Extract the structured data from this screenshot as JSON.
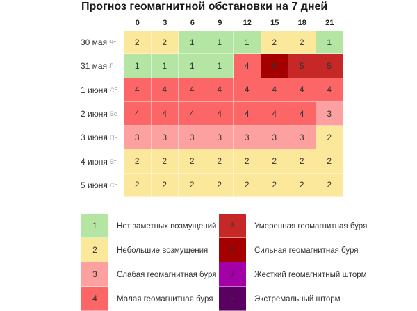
{
  "chart_data": {
    "type": "heatmap",
    "title": "Прогноз геомагнитной обстановки на 7 дней",
    "x": [
      "0",
      "3",
      "6",
      "9",
      "12",
      "15",
      "18",
      "21"
    ],
    "rows": [
      {
        "date": "30 мая",
        "dow": "Чт",
        "values": [
          2,
          2,
          1,
          1,
          1,
          2,
          2,
          1
        ]
      },
      {
        "date": "31 мая",
        "dow": "Пт",
        "values": [
          1,
          1,
          1,
          1,
          4,
          6,
          5,
          5
        ]
      },
      {
        "date": "1 июня",
        "dow": "Сб",
        "values": [
          4,
          4,
          4,
          4,
          4,
          4,
          4,
          4
        ]
      },
      {
        "date": "2 июня",
        "dow": "Вс",
        "values": [
          4,
          4,
          4,
          4,
          4,
          4,
          4,
          3
        ]
      },
      {
        "date": "3 июня",
        "dow": "Пн",
        "values": [
          3,
          3,
          3,
          3,
          3,
          3,
          3,
          2
        ]
      },
      {
        "date": "4 июня",
        "dow": "Вт",
        "values": [
          2,
          2,
          2,
          2,
          2,
          2,
          2,
          2
        ]
      },
      {
        "date": "5 июня",
        "dow": "Ср",
        "values": [
          2,
          2,
          2,
          2,
          2,
          2,
          2,
          2
        ]
      }
    ],
    "legend": [
      {
        "level": "1",
        "label": "Нет заметных возмущений",
        "color": "#b5e5a2"
      },
      {
        "level": "2",
        "label": "Небольшие возмущения",
        "color": "#fbe89a"
      },
      {
        "level": "3",
        "label": "Слабая геомагнитная буря",
        "color": "#fca0a0"
      },
      {
        "level": "4",
        "label": "Малая геомагнитная буря",
        "color": "#fd6666"
      },
      {
        "level": "5",
        "label": "Умеренная геомагнитная буря",
        "color": "#c62828"
      },
      {
        "level": "6",
        "label": "Сильная геомагнитная буря",
        "color": "#a50000"
      },
      {
        "level": "7",
        "label": "Жесткий геомагнитный шторм",
        "color": "#a300a8"
      },
      {
        "level": "8",
        "label": "Экстремальный шторм",
        "color": "#5a0060"
      }
    ]
  }
}
